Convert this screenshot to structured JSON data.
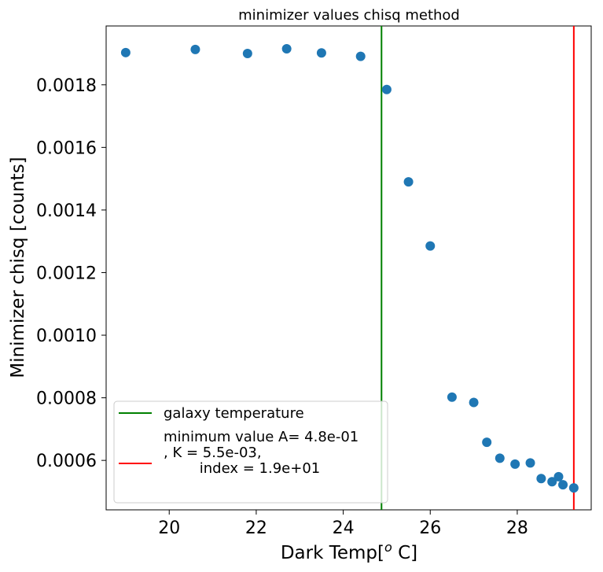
{
  "chart_data": {
    "type": "scatter",
    "title": "minimizer values chisq method",
    "xlabel": {
      "prefix": "Dark Temp[",
      "superscript": "o",
      "suffix": " C]"
    },
    "ylabel": "Minimizer chisq [counts]",
    "xlim": [
      18.55,
      29.7
    ],
    "ylim": [
      0.000442,
      0.001988
    ],
    "x_ticks": [
      20,
      22,
      24,
      26,
      28
    ],
    "x_tick_labels": [
      "20",
      "22",
      "24",
      "26",
      "28"
    ],
    "y_ticks": [
      0.0006,
      0.0008,
      0.001,
      0.0012,
      0.0014,
      0.0016,
      0.0018
    ],
    "y_tick_labels": [
      "0.0006",
      "0.0008",
      "0.0010",
      "0.0012",
      "0.0014",
      "0.0016",
      "0.0018"
    ],
    "grid": false,
    "marker_color": "#1f77b4",
    "points": {
      "x": [
        19.0,
        20.6,
        21.8,
        22.7,
        23.5,
        24.4,
        25.0,
        25.5,
        26.0,
        26.5,
        27.0,
        27.3,
        27.6,
        27.95,
        28.3,
        28.55,
        28.8,
        28.95,
        29.05,
        29.3
      ],
      "y": [
        0.001903,
        0.001913,
        0.0019,
        0.001915,
        0.001902,
        0.001891,
        0.001785,
        0.00149,
        0.001285,
        0.000802,
        0.000785,
        0.000658,
        0.000607,
        0.000588,
        0.000592,
        0.000542,
        0.000532,
        0.000548,
        0.000522,
        0.000512
      ]
    },
    "vlines": [
      {
        "x": 24.88,
        "color": "#008000",
        "label": "galaxy temperature"
      },
      {
        "x": 29.3,
        "color": "#ff0000",
        "label_lines": [
          "minimum value A= 4.8e-01",
          ", K = 5.5e-03,",
          "        index = 1.9e+01"
        ]
      }
    ],
    "legend_position": "lower-left"
  }
}
